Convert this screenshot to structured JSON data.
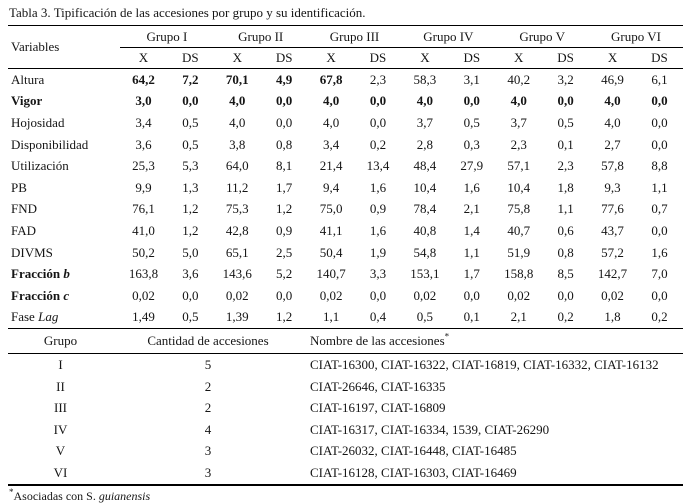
{
  "title": "Tabla 3. Tipificación de las accesiones por grupo y su identificación.",
  "main_table": {
    "variables_header": "Variables",
    "groups": [
      "Grupo I",
      "Grupo II",
      "Grupo III",
      "Grupo IV",
      "Grupo V",
      "Grupo VI"
    ],
    "subheaders": [
      "X",
      "DS"
    ],
    "rows": [
      {
        "label": "Altura",
        "italic_part": "",
        "bold_label": false,
        "values": [
          "64,2",
          "7,2",
          "70,1",
          "4,9",
          "67,8",
          "2,3",
          "58,3",
          "3,1",
          "40,2",
          "3,2",
          "46,9",
          "6,1"
        ],
        "bold": [
          1,
          1,
          1,
          1,
          1,
          0,
          0,
          0,
          0,
          0,
          0,
          0
        ]
      },
      {
        "label": "Vigor",
        "italic_part": "",
        "bold_label": true,
        "values": [
          "3,0",
          "0,0",
          "4,0",
          "0,0",
          "4,0",
          "0,0",
          "4,0",
          "0,0",
          "4,0",
          "0,0",
          "4,0",
          "0,0"
        ],
        "bold": [
          1,
          1,
          1,
          1,
          1,
          1,
          1,
          1,
          1,
          1,
          1,
          1
        ]
      },
      {
        "label": "Hojosidad",
        "italic_part": "",
        "bold_label": false,
        "values": [
          "3,4",
          "0,5",
          "4,0",
          "0,0",
          "4,0",
          "0,0",
          "3,7",
          "0,5",
          "3,7",
          "0,5",
          "4,0",
          "0,0"
        ],
        "bold": [
          0,
          0,
          0,
          0,
          0,
          0,
          0,
          0,
          0,
          0,
          0,
          0
        ]
      },
      {
        "label": "Disponibilidad",
        "italic_part": "",
        "bold_label": false,
        "values": [
          "3,6",
          "0,5",
          "3,8",
          "0,8",
          "3,4",
          "0,2",
          "2,8",
          "0,3",
          "2,3",
          "0,1",
          "2,7",
          "0,0"
        ],
        "bold": [
          0,
          0,
          0,
          0,
          0,
          0,
          0,
          0,
          0,
          0,
          0,
          0
        ]
      },
      {
        "label": "Utilización",
        "italic_part": "",
        "bold_label": false,
        "values": [
          "25,3",
          "5,3",
          "64,0",
          "8,1",
          "21,4",
          "13,4",
          "48,4",
          "27,9",
          "57,1",
          "2,3",
          "57,8",
          "8,8"
        ],
        "bold": [
          0,
          0,
          0,
          0,
          0,
          0,
          0,
          0,
          0,
          0,
          0,
          0
        ]
      },
      {
        "label": "PB",
        "italic_part": "",
        "bold_label": false,
        "values": [
          "9,9",
          "1,3",
          "11,2",
          "1,7",
          "9,4",
          "1,6",
          "10,4",
          "1,6",
          "10,4",
          "1,8",
          "9,3",
          "1,1"
        ],
        "bold": [
          0,
          0,
          0,
          0,
          0,
          0,
          0,
          0,
          0,
          0,
          0,
          0
        ]
      },
      {
        "label": "FND",
        "italic_part": "",
        "bold_label": false,
        "values": [
          "76,1",
          "1,2",
          "75,3",
          "1,2",
          "75,0",
          "0,9",
          "78,4",
          "2,1",
          "75,8",
          "1,1",
          "77,6",
          "0,7"
        ],
        "bold": [
          0,
          0,
          0,
          0,
          0,
          0,
          0,
          0,
          0,
          0,
          0,
          0
        ]
      },
      {
        "label": "FAD",
        "italic_part": "",
        "bold_label": false,
        "values": [
          "41,0",
          "1,2",
          "42,8",
          "0,9",
          "41,1",
          "1,6",
          "40,8",
          "1,4",
          "40,7",
          "0,6",
          "43,7",
          "0,0"
        ],
        "bold": [
          0,
          0,
          0,
          0,
          0,
          0,
          0,
          0,
          0,
          0,
          0,
          0
        ]
      },
      {
        "label": "DIVMS",
        "italic_part": "",
        "bold_label": false,
        "values": [
          "50,2",
          "5,0",
          "65,1",
          "2,5",
          "50,4",
          "1,9",
          "54,8",
          "1,1",
          "51,9",
          "0,8",
          "57,2",
          "1,6"
        ],
        "bold": [
          0,
          0,
          0,
          0,
          0,
          0,
          0,
          0,
          0,
          0,
          0,
          0
        ]
      },
      {
        "label": "Fracción",
        "italic_part": "b",
        "bold_label": true,
        "values": [
          "163,8",
          "3,6",
          "143,6",
          "5,2",
          "140,7",
          "3,3",
          "153,1",
          "1,7",
          "158,8",
          "8,5",
          "142,7",
          "7,0"
        ],
        "bold": [
          0,
          0,
          0,
          0,
          0,
          0,
          0,
          0,
          0,
          0,
          0,
          0
        ]
      },
      {
        "label": "Fracción",
        "italic_part": "c",
        "bold_label": true,
        "values": [
          "0,02",
          "0,0",
          "0,02",
          "0,0",
          "0,02",
          "0,0",
          "0,02",
          "0,0",
          "0,02",
          "0,0",
          "0,02",
          "0,0"
        ],
        "bold": [
          0,
          0,
          0,
          0,
          0,
          0,
          0,
          0,
          0,
          0,
          0,
          0
        ]
      },
      {
        "label": "Fase",
        "italic_part": "Lag",
        "bold_label": false,
        "values": [
          "1,49",
          "0,5",
          "1,39",
          "1,2",
          "1,1",
          "0,4",
          "0,5",
          "0,1",
          "2,1",
          "0,2",
          "1,8",
          "0,2"
        ],
        "bold": [
          0,
          0,
          0,
          0,
          0,
          0,
          0,
          0,
          0,
          0,
          0,
          0
        ]
      }
    ]
  },
  "groups_table": {
    "headers": [
      "Grupo",
      "Cantidad de accesiones",
      "Nombre de las accesiones"
    ],
    "header_superscript": "*",
    "rows": [
      {
        "group": "I",
        "count": "5",
        "names": "CIAT-16300, CIAT-16322, CIAT-16819, CIAT-16332, CIAT-16132"
      },
      {
        "group": "II",
        "count": "2",
        "names": "CIAT-26646, CIAT-16335"
      },
      {
        "group": "III",
        "count": "2",
        "names": "CIAT-16197, CIAT-16809"
      },
      {
        "group": "IV",
        "count": "4",
        "names": "CIAT-16317, CIAT-16334, 1539, CIAT-26290"
      },
      {
        "group": "V",
        "count": "3",
        "names": "CIAT-26032, CIAT-16448, CIAT-16485"
      },
      {
        "group": "VI",
        "count": "3",
        "names": "CIAT-16128, CIAT-16303, CIAT-16469"
      }
    ]
  },
  "footnote": {
    "marker": "*",
    "text": "Asociadas con S. ",
    "italic": "guianensis"
  }
}
